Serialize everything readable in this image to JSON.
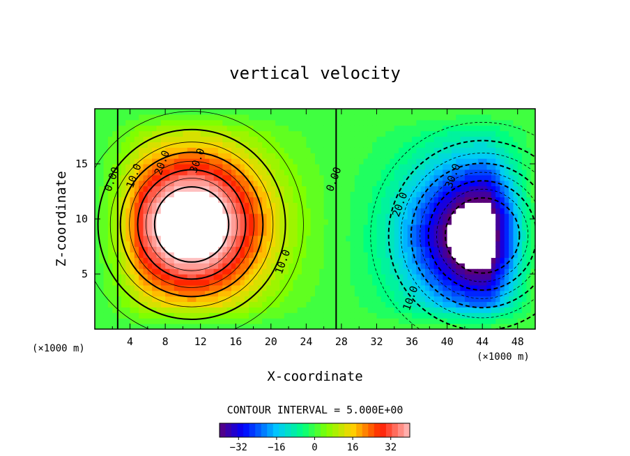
{
  "chart_data": {
    "type": "heatmap",
    "title": "vertical velocity",
    "xlabel": "X-coordinate",
    "ylabel": "Z-coordinate",
    "x_unit": "(×1000 m)",
    "z_unit": "(×1000 m)",
    "xlim": [
      0,
      50
    ],
    "zlim": [
      0,
      20
    ],
    "x_ticks": [
      4,
      8,
      12,
      16,
      20,
      24,
      28,
      32,
      36,
      40,
      44,
      48
    ],
    "z_ticks": [
      5,
      10,
      15
    ],
    "contour_interval_text": "CONTOUR INTERVAL = 5.000E+00",
    "contour_interval": 5,
    "colorbar": {
      "min": -40,
      "max": 40,
      "ticks": [
        -32,
        -16,
        0,
        16,
        32
      ],
      "tick_labels": [
        "−32",
        "−16",
        "0",
        "16",
        "32"
      ]
    },
    "cells": [
      {
        "name": "updraft",
        "center_x": 11,
        "center_z": 9.5,
        "peak": 45,
        "sign": 1
      },
      {
        "name": "downdraft",
        "center_x": 44,
        "center_z": 8.5,
        "peak": 45,
        "sign": -1
      }
    ],
    "contour_labels": [
      {
        "text": "0.00",
        "x": 2.3,
        "z": 13.5
      },
      {
        "text": "10.0",
        "x": 4.8,
        "z": 13.8
      },
      {
        "text": "20.0",
        "x": 8.0,
        "z": 15.0
      },
      {
        "text": "30.0",
        "x": 12.0,
        "z": 15.2
      },
      {
        "text": "10.0",
        "x": 21.7,
        "z": 6.0
      },
      {
        "text": "0.00",
        "x": 27.5,
        "z": 13.5
      },
      {
        "text": "20.0",
        "x": 35.0,
        "z": 11.2
      },
      {
        "text": "30.0",
        "x": 41.0,
        "z": 13.8
      },
      {
        "text": "10.0",
        "x": 36.2,
        "z": 2.7
      }
    ]
  }
}
